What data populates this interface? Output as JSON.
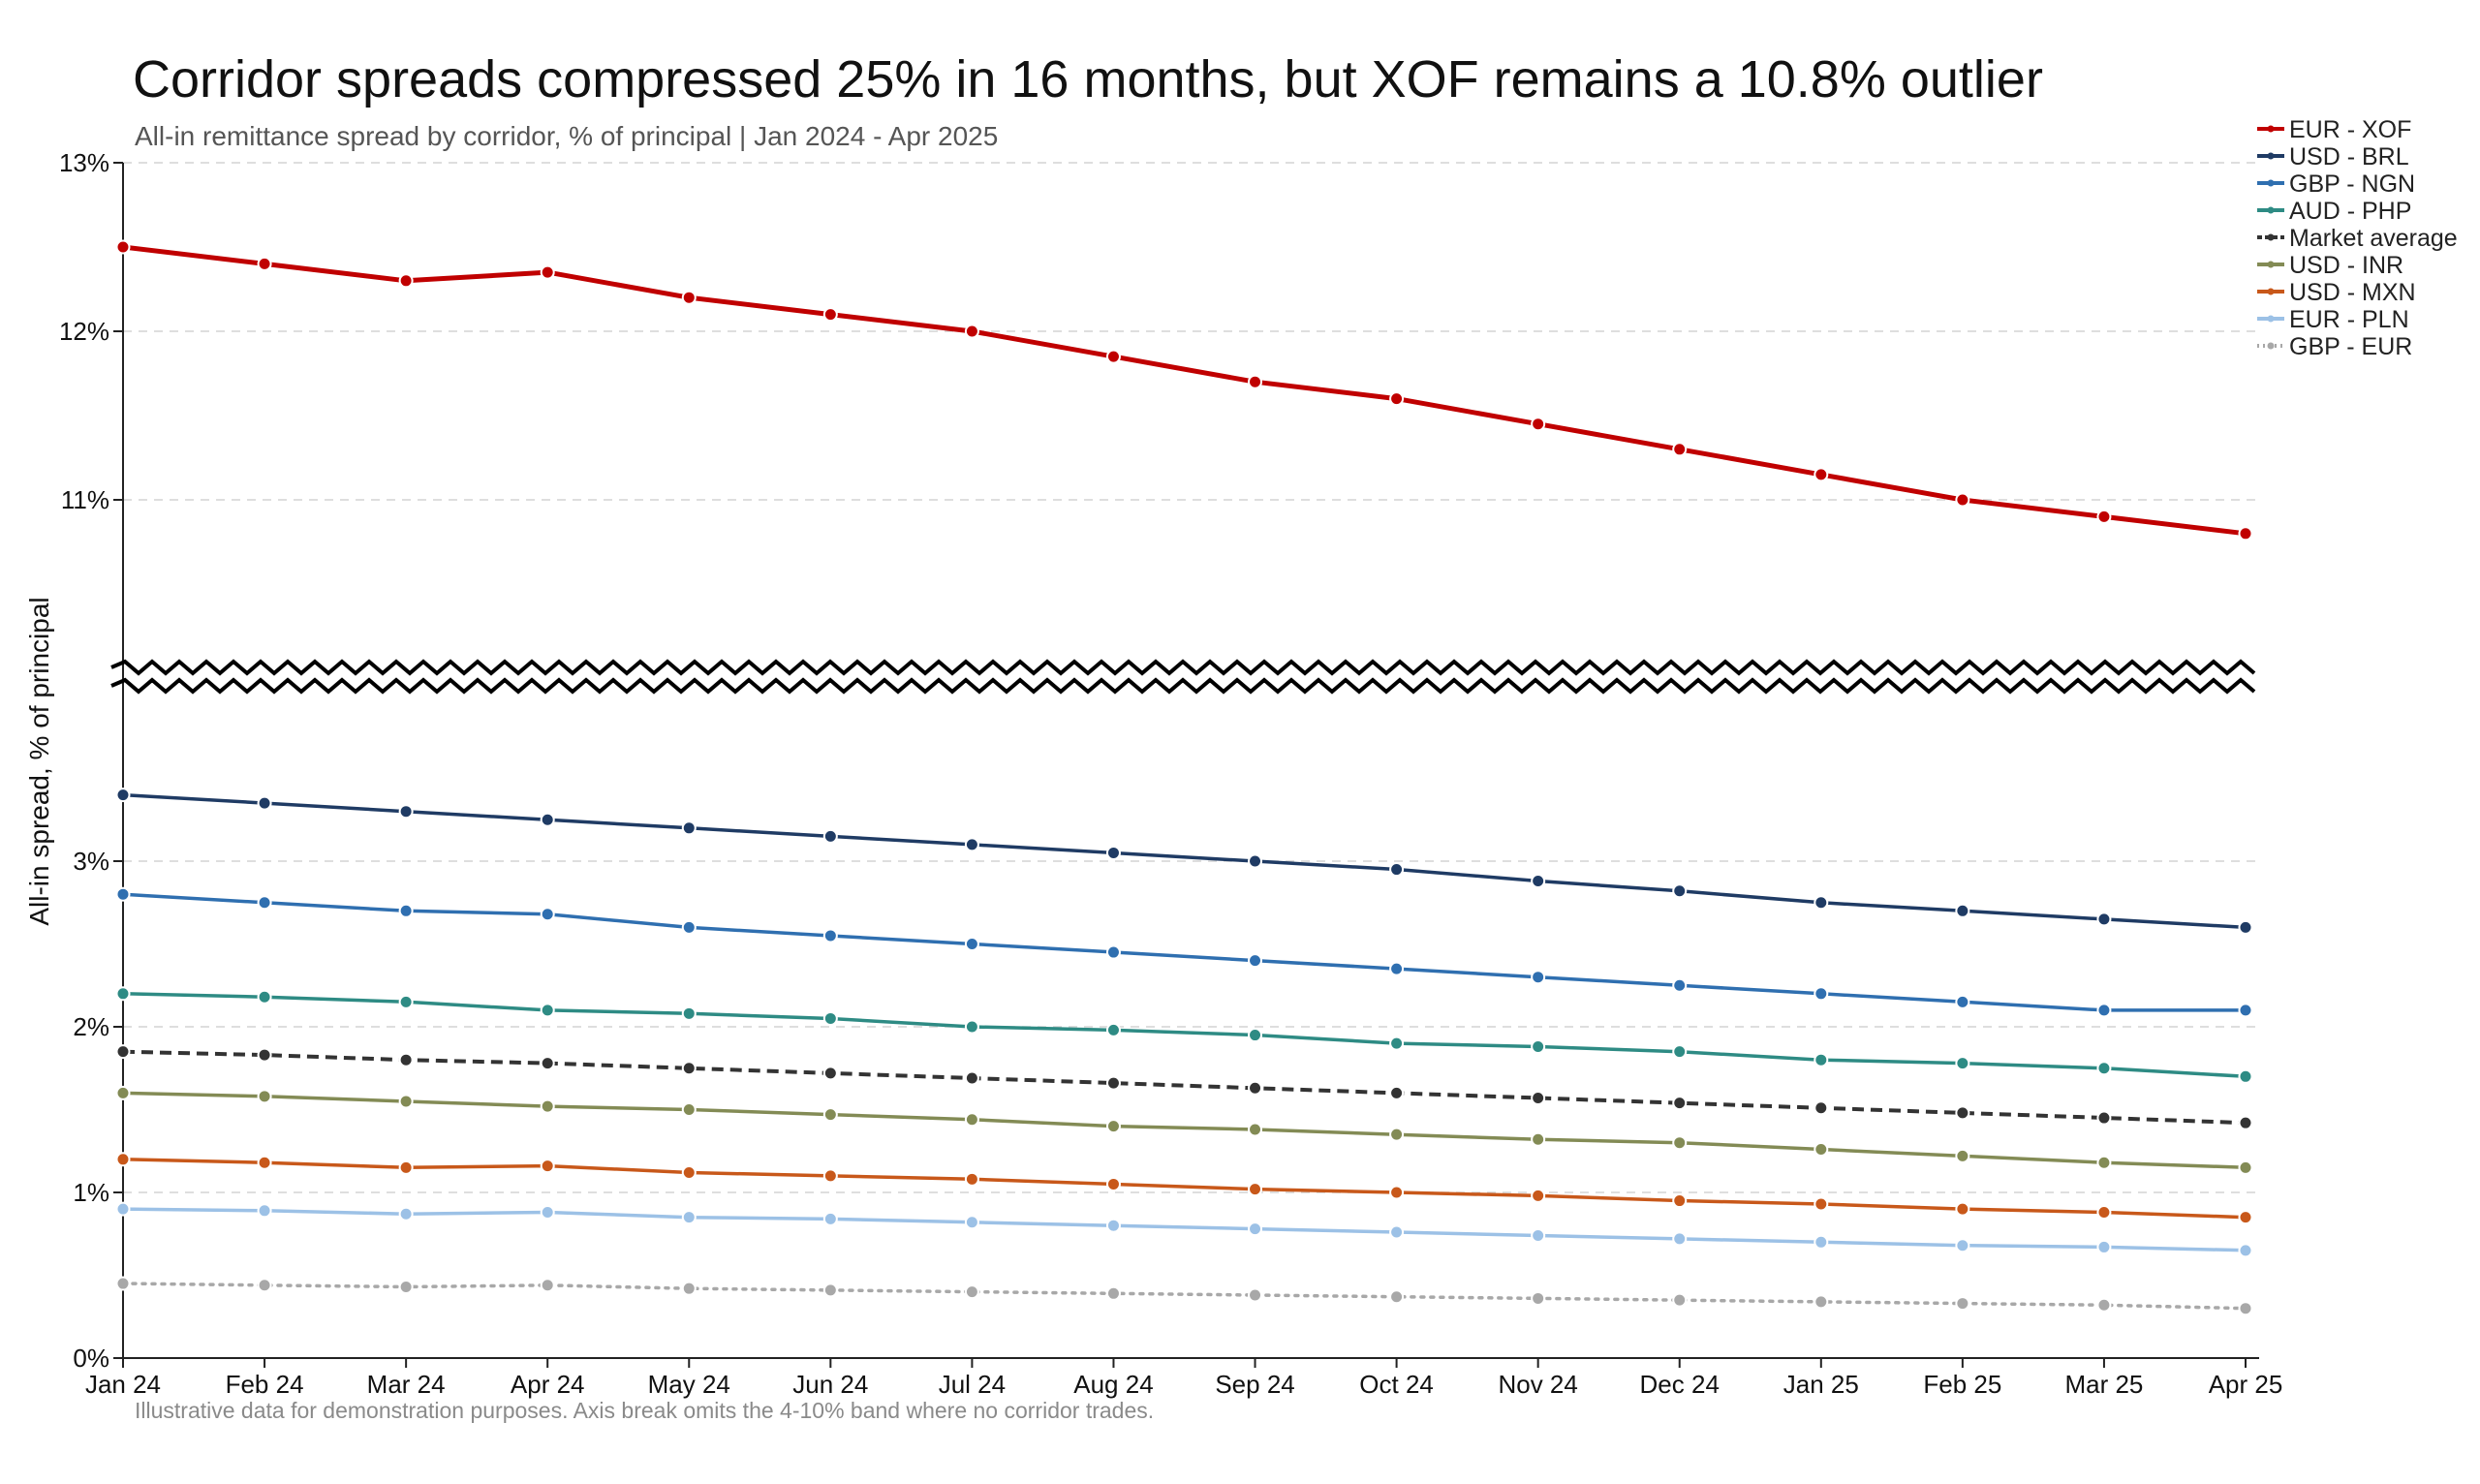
{
  "chart_data": {
    "type": "line",
    "title": "Corridor spreads compressed 25% in 16 months, but XOF remains a 10.8% outlier",
    "subtitle": "All-in remittance spread by corridor, % of principal | Jan 2024 - Apr 2025",
    "ylabel": "All-in spread, % of principal",
    "footnote": "Illustrative data for demonstration purposes. Axis break omits the 4-10% band where no corridor trades.",
    "categories": [
      "Jan 24",
      "Feb 24",
      "Mar 24",
      "Apr 24",
      "May 24",
      "Jun 24",
      "Jul 24",
      "Aug 24",
      "Sep 24",
      "Oct 24",
      "Nov 24",
      "Dec 24",
      "Jan 25",
      "Feb 25",
      "Mar 25",
      "Apr 25"
    ],
    "y_segments": {
      "upper": {
        "ylim": [
          10,
          13
        ],
        "ticks": [
          13,
          12,
          11
        ],
        "tick_labels": [
          "13%",
          "12%",
          "11%"
        ]
      },
      "lower": {
        "ylim": [
          0,
          4
        ],
        "ticks": [
          3,
          2,
          1,
          0
        ],
        "tick_labels": [
          "3%",
          "2%",
          "1%",
          "0%"
        ]
      },
      "break_omits": [
        4,
        10
      ]
    },
    "grid": true,
    "legend_position": "top-right",
    "series": [
      {
        "name": "EUR - XOF",
        "color": "#c00000",
        "style": "solid",
        "width": 5,
        "values": [
          12.5,
          12.4,
          12.3,
          12.35,
          12.2,
          12.1,
          12.0,
          11.85,
          11.7,
          11.6,
          11.45,
          11.3,
          11.15,
          11.0,
          10.9,
          10.8
        ]
      },
      {
        "name": "USD - BRL",
        "color": "#1f3b64",
        "style": "solid",
        "width": 3.5,
        "values": [
          3.4,
          3.35,
          3.3,
          3.25,
          3.2,
          3.15,
          3.1,
          3.05,
          3.0,
          2.95,
          2.88,
          2.82,
          2.75,
          2.7,
          2.65,
          2.6
        ]
      },
      {
        "name": "GBP - NGN",
        "color": "#2f6fb0",
        "style": "solid",
        "width": 3.5,
        "values": [
          2.8,
          2.75,
          2.7,
          2.68,
          2.6,
          2.55,
          2.5,
          2.45,
          2.4,
          2.35,
          2.3,
          2.25,
          2.2,
          2.15,
          2.1,
          2.1
        ]
      },
      {
        "name": "AUD - PHP",
        "color": "#2e8b84",
        "style": "solid",
        "width": 3.5,
        "values": [
          2.2,
          2.18,
          2.15,
          2.1,
          2.08,
          2.05,
          2.0,
          1.98,
          1.95,
          1.9,
          1.88,
          1.85,
          1.8,
          1.78,
          1.75,
          1.7
        ]
      },
      {
        "name": "Market average",
        "color": "#333333",
        "style": "dashed",
        "width": 4,
        "values": [
          1.85,
          1.83,
          1.8,
          1.78,
          1.75,
          1.72,
          1.69,
          1.66,
          1.63,
          1.6,
          1.57,
          1.54,
          1.51,
          1.48,
          1.45,
          1.42
        ]
      },
      {
        "name": "USD - INR",
        "color": "#838b55",
        "style": "solid",
        "width": 3.5,
        "values": [
          1.6,
          1.58,
          1.55,
          1.52,
          1.5,
          1.47,
          1.44,
          1.4,
          1.38,
          1.35,
          1.32,
          1.3,
          1.26,
          1.22,
          1.18,
          1.15
        ]
      },
      {
        "name": "USD - MXN",
        "color": "#c8581a",
        "style": "solid",
        "width": 3.5,
        "values": [
          1.2,
          1.18,
          1.15,
          1.16,
          1.12,
          1.1,
          1.08,
          1.05,
          1.02,
          1.0,
          0.98,
          0.95,
          0.93,
          0.9,
          0.88,
          0.85
        ]
      },
      {
        "name": "EUR - PLN",
        "color": "#9cc1e6",
        "style": "solid",
        "width": 3.5,
        "values": [
          0.9,
          0.89,
          0.87,
          0.88,
          0.85,
          0.84,
          0.82,
          0.8,
          0.78,
          0.76,
          0.74,
          0.72,
          0.7,
          0.68,
          0.67,
          0.65
        ]
      },
      {
        "name": "GBP - EUR",
        "color": "#a8a8a8",
        "style": "dotted",
        "width": 3.5,
        "values": [
          0.45,
          0.44,
          0.43,
          0.44,
          0.42,
          0.41,
          0.4,
          0.39,
          0.38,
          0.37,
          0.36,
          0.35,
          0.34,
          0.33,
          0.32,
          0.3
        ]
      }
    ]
  }
}
